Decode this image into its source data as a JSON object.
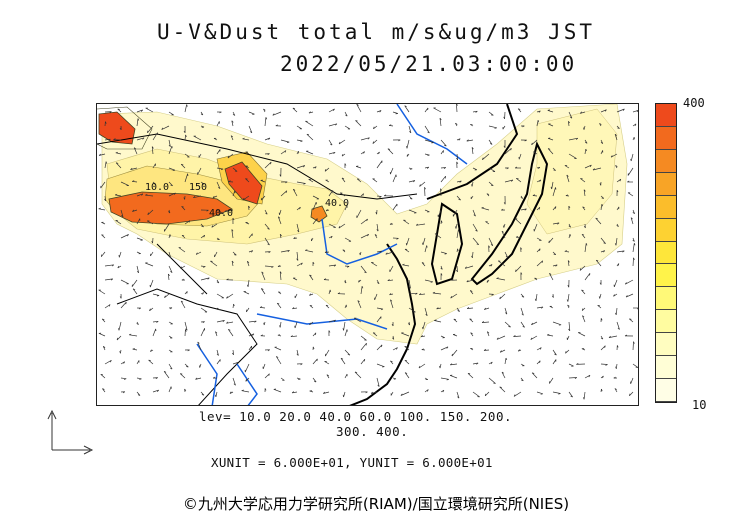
{
  "title": {
    "line1": "U-V&Dust total m/s&ug/m3 JST",
    "line2": "2022/05/21.03:00:00"
  },
  "colorbar": {
    "max_label": "400",
    "min_label": "10",
    "colors": [
      "#ee4a1c",
      "#f26a1e",
      "#f58a22",
      "#f8a426",
      "#fbbd2b",
      "#fdd232",
      "#fee63a",
      "#fff34a",
      "#fff978",
      "#fffca0",
      "#fffdc0",
      "#fffed6",
      "#fffee6"
    ]
  },
  "levels": {
    "line1": "lev= 10.0 20.0 40.0 60.0 100. 150. 200.",
    "line2": "300. 400."
  },
  "units_text": "XUNIT = 6.000E+01, YUNIT = 6.000E+01",
  "contour_labels": [
    "10.0",
    "150",
    "40.0",
    "40.0"
  ],
  "copyright": "©九州大学応用力学研究所(RIAM)/国立環境研究所(NIES)",
  "colors": {
    "coast": "#000000",
    "rivers": "#1560e0",
    "dust_high": "#ee4a1c",
    "dust_low": "#fff9c8"
  }
}
